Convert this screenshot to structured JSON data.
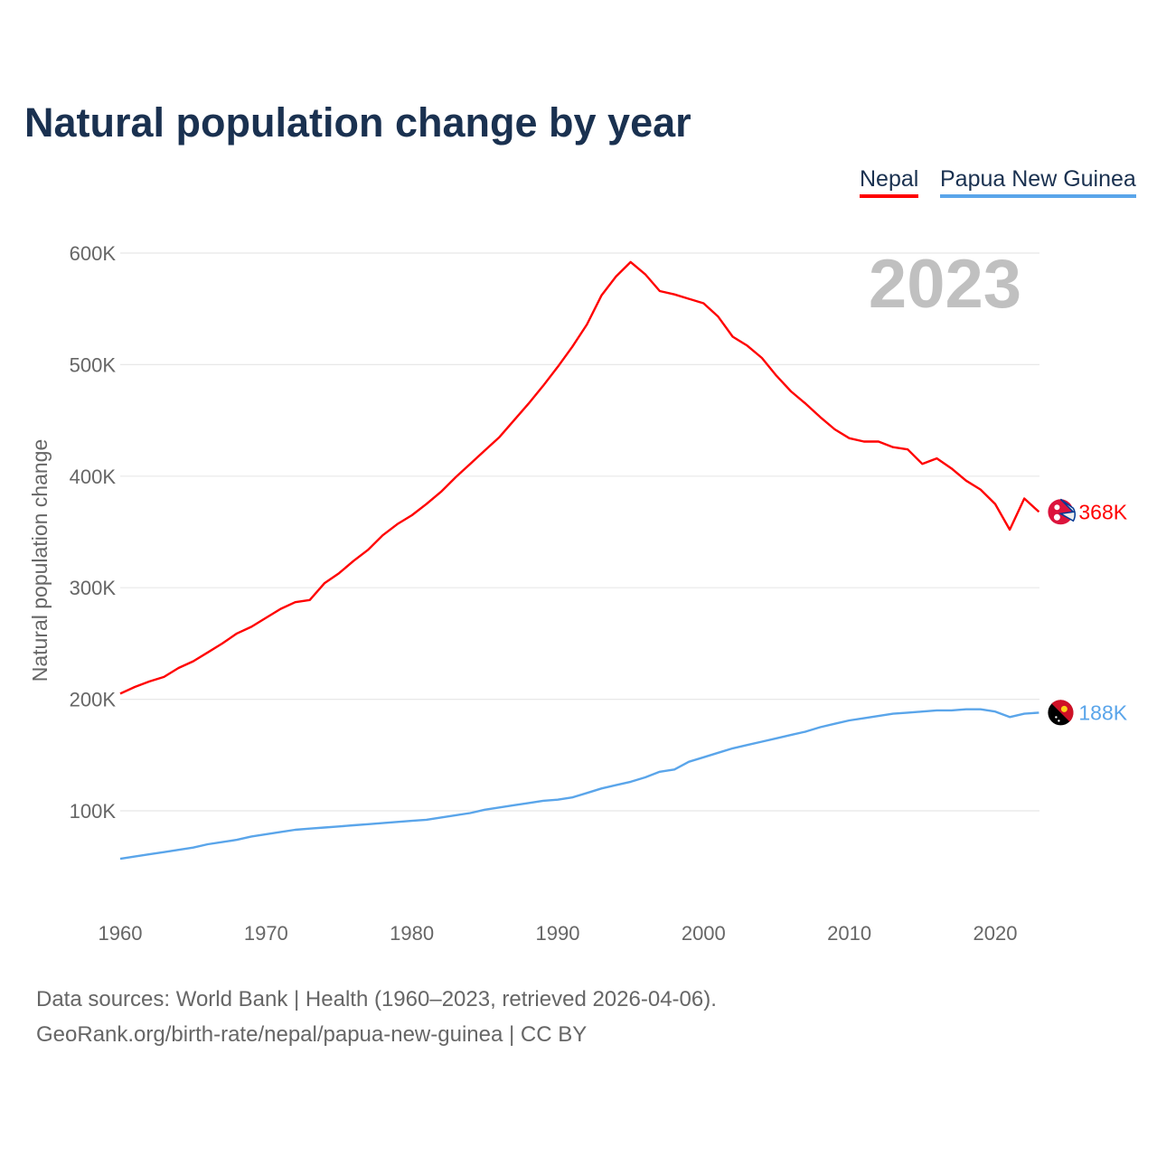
{
  "chart_data": {
    "type": "line",
    "title": "Natural population change by year",
    "ylabel": "Natural population change",
    "xlabel": "",
    "year_label": "2023",
    "ylim": [
      0,
      600000
    ],
    "y_ticks": [
      100000,
      200000,
      300000,
      400000,
      500000,
      600000
    ],
    "y_tick_labels": [
      "100K",
      "200K",
      "300K",
      "400K",
      "500K",
      "600K"
    ],
    "x_ticks": [
      1960,
      1970,
      1980,
      1990,
      2000,
      2010,
      2020
    ],
    "x_tick_labels": [
      "1960",
      "1970",
      "1980",
      "1990",
      "2000",
      "2010",
      "2020"
    ],
    "grid": true,
    "legend_position": "top-right",
    "x": [
      1960,
      1961,
      1962,
      1963,
      1964,
      1965,
      1966,
      1967,
      1968,
      1969,
      1970,
      1971,
      1972,
      1973,
      1974,
      1975,
      1976,
      1977,
      1978,
      1979,
      1980,
      1981,
      1982,
      1983,
      1984,
      1985,
      1986,
      1987,
      1988,
      1989,
      1990,
      1991,
      1992,
      1993,
      1994,
      1995,
      1996,
      1997,
      1998,
      1999,
      2000,
      2001,
      2002,
      2003,
      2004,
      2005,
      2006,
      2007,
      2008,
      2009,
      2010,
      2011,
      2012,
      2013,
      2014,
      2015,
      2016,
      2017,
      2018,
      2019,
      2020,
      2021,
      2022,
      2023
    ],
    "series": [
      {
        "name": "Nepal",
        "color": "#ff0000",
        "end_label": "368K",
        "flag": "nepal-flag",
        "values": [
          205000,
          211000,
          216000,
          220000,
          228000,
          234000,
          242000,
          250000,
          259000,
          265000,
          273000,
          281000,
          287000,
          289000,
          304000,
          313000,
          324000,
          334000,
          347000,
          357000,
          365000,
          375000,
          386000,
          399000,
          411000,
          423000,
          435000,
          450000,
          465000,
          481000,
          498000,
          516000,
          536000,
          562000,
          579000,
          592000,
          581000,
          566000,
          563000,
          559000,
          555000,
          543000,
          525000,
          517000,
          506000,
          490000,
          476000,
          465000,
          453000,
          442000,
          434000,
          431000,
          431000,
          426000,
          424000,
          411000,
          416000,
          407000,
          396000,
          388000,
          375000,
          352000,
          380000,
          368000
        ]
      },
      {
        "name": "Papua New Guinea",
        "color": "#5aa5ea",
        "end_label": "188K",
        "flag": "papua-new-guinea-flag",
        "values": [
          57000,
          59000,
          61000,
          63000,
          65000,
          67000,
          70000,
          72000,
          74000,
          77000,
          79000,
          81000,
          83000,
          84000,
          85000,
          86000,
          87000,
          88000,
          89000,
          90000,
          91000,
          92000,
          94000,
          96000,
          98000,
          101000,
          103000,
          105000,
          107000,
          109000,
          110000,
          112000,
          116000,
          120000,
          123000,
          126000,
          130000,
          135000,
          137000,
          144000,
          148000,
          152000,
          156000,
          159000,
          162000,
          165000,
          168000,
          171000,
          175000,
          178000,
          181000,
          183000,
          185000,
          187000,
          188000,
          189000,
          190000,
          190000,
          191000,
          191000,
          189000,
          184000,
          187000,
          188000
        ]
      }
    ]
  },
  "footer": {
    "line1": "Data sources: World Bank | Health (1960–2023, retrieved 2026-04-06).",
    "line2": "GeoRank.org/birth-rate/nepal/papua-new-guinea | CC BY"
  }
}
